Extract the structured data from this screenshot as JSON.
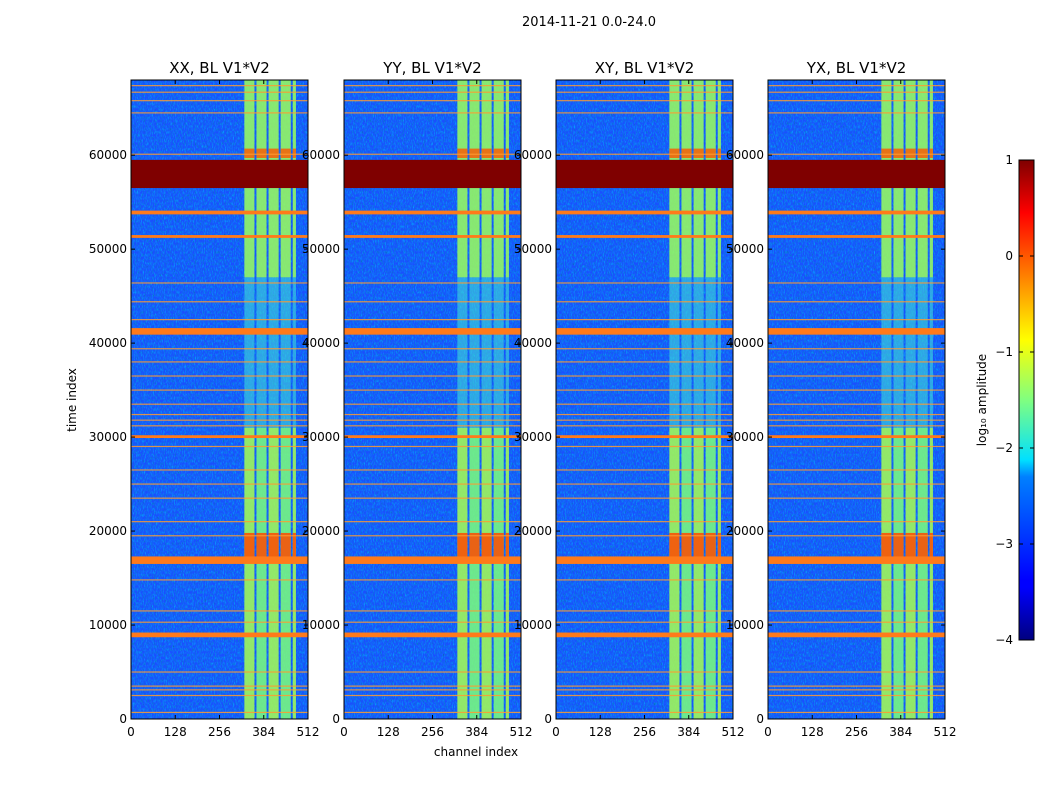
{
  "chart_data": {
    "type": "heatmap",
    "title": "2014-11-21 0.0-24.0",
    "xlabel": "channel index",
    "ylabel": "time index",
    "colorbar_label": "log₁₀ amplitude",
    "xlim": [
      0,
      512
    ],
    "ylim": [
      0,
      68000
    ],
    "xticks": [
      0,
      128,
      256,
      384,
      512
    ],
    "yticks": [
      0,
      10000,
      20000,
      30000,
      40000,
      50000,
      60000
    ],
    "clim": [
      -4,
      1
    ],
    "colorbar_ticks": [
      "−4",
      "−3",
      "−2",
      "−1",
      "0",
      "1"
    ],
    "colorbar_tick_values": [
      -4,
      -3,
      -2,
      -1,
      0,
      1
    ],
    "panels": [
      {
        "name": "XX",
        "title": "XX, BL V1*V2"
      },
      {
        "name": "YY",
        "title": "YY, BL V1*V2"
      },
      {
        "name": "XY",
        "title": "XY, BL V1*V2"
      },
      {
        "name": "YX",
        "title": "YX, BL V1*V2"
      }
    ],
    "rfi_channel_band": [
      325,
      480
    ],
    "rfi_subband_edges": [
      325,
      360,
      395,
      430,
      465,
      480
    ],
    "saturated_time_band": [
      56500,
      59500
    ],
    "strong_time_bands": [
      [
        16500,
        17300
      ],
      [
        40900,
        41600
      ],
      [
        8700,
        9200
      ],
      [
        53700,
        54100
      ],
      [
        51200,
        51500
      ],
      [
        29900,
        30200
      ]
    ],
    "weak_time_lines": [
      700,
      2500,
      3100,
      3500,
      5000,
      10300,
      11500,
      14800,
      19500,
      21000,
      23500,
      25000,
      26500,
      29000,
      31200,
      31800,
      32400,
      33500,
      35000,
      36500,
      38000,
      39400,
      42500,
      44400,
      46400,
      60100,
      64500,
      65800,
      66700,
      67400
    ]
  }
}
